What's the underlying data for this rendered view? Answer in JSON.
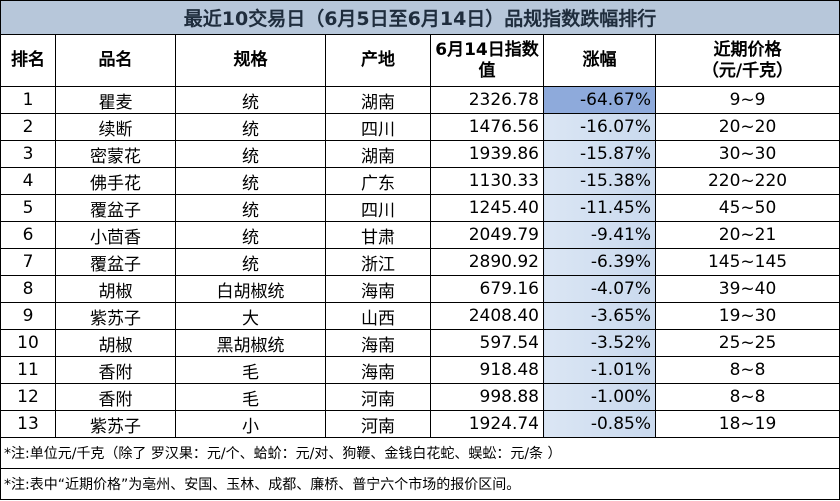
{
  "title": "最近10交易日（6月5日至6月14日）品规指数跌幅排行",
  "header": [
    "排名",
    "品名",
    "规格",
    "产地",
    "6月14日指数值",
    "涨幅"
  ],
  "price_header": [
    "近期价格",
    "（元/千克）"
  ],
  "rows": [
    [
      "1",
      "瞿麦",
      "统",
      "湖南",
      "2326.78",
      "-64.67%",
      "9~9"
    ],
    [
      "2",
      "续断",
      "统",
      "四川",
      "1476.56",
      "-16.07%",
      "20~20"
    ],
    [
      "3",
      "密蒙花",
      "统",
      "湖南",
      "1939.86",
      "-15.87%",
      "30~30"
    ],
    [
      "4",
      "佛手花",
      "统",
      "广东",
      "1130.33",
      "-15.38%",
      "220~220"
    ],
    [
      "5",
      "覆盆子",
      "统",
      "四川",
      "1245.40",
      "-11.45%",
      "45~50"
    ],
    [
      "6",
      "小茴香",
      "统",
      "甘肃",
      "2049.79",
      "-9.41%",
      "20~21"
    ],
    [
      "7",
      "覆盆子",
      "统",
      "浙江",
      "2890.92",
      "-6.39%",
      "145~145"
    ],
    [
      "8",
      "胡椒",
      "白胡椒统",
      "海南",
      "679.16",
      "-4.07%",
      "39~40"
    ],
    [
      "9",
      "紫苏子",
      "大",
      "山西",
      "2408.40",
      "-3.65%",
      "19~30"
    ],
    [
      "10",
      "胡椒",
      "黑胡椒统",
      "海南",
      "597.54",
      "-3.52%",
      "25~25"
    ],
    [
      "11",
      "香附",
      "毛",
      "海南",
      "918.48",
      "-1.01%",
      "8~8"
    ],
    [
      "12",
      "香附",
      "毛",
      "河南",
      "998.88",
      "-1.00%",
      "8~8"
    ],
    [
      "13",
      "紫苏子",
      "小",
      "河南",
      "1924.74",
      "-0.85%",
      "18~19"
    ]
  ],
  "notes": [
    "*注:单位元/千克（除了 罗汉果：元/个、蛤蚧：元/对、狗鞭、金钱白花蛇、蜈蚣：元/条 ）",
    "*注:表中“近期价格”为亳州、安国、玉林、成都、廉桥、普宁六个市场的报价区间。"
  ]
}
